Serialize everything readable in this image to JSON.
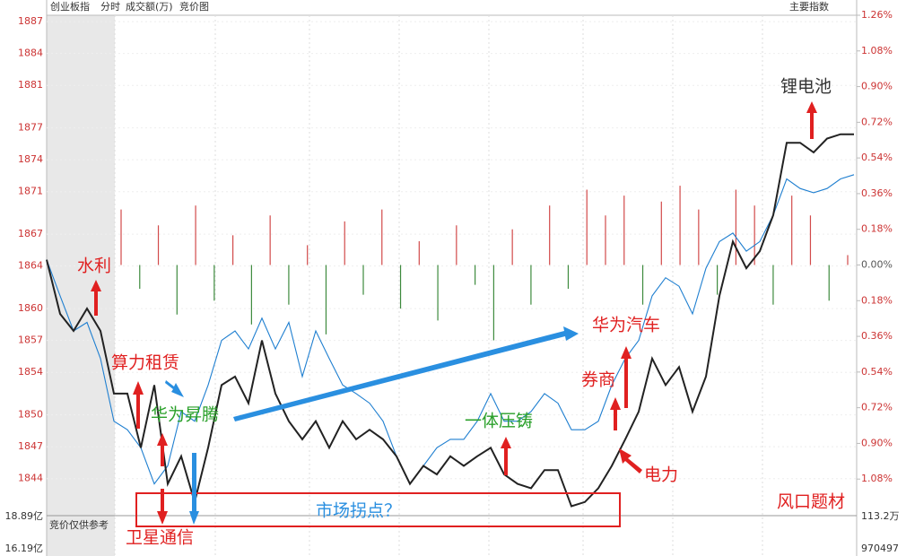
{
  "header": {
    "title": "创业板指",
    "items": [
      "分时",
      "成交额(万)",
      "竞价图"
    ],
    "right": "主要指数"
  },
  "chart_data": {
    "type": "line",
    "ylim": [
      1840.6,
      1887.6
    ],
    "yticks": [
      1887,
      1884,
      1881,
      1877,
      1874,
      1871,
      1867,
      1864,
      1860,
      1857,
      1854,
      1850,
      1847,
      1844
    ],
    "y2lim": [
      -1.26,
      1.26
    ],
    "y2ticks": [
      {
        "value": 1.26,
        "label": "1.26%"
      },
      {
        "value": 1.08,
        "label": "1.08%"
      },
      {
        "value": 0.9,
        "label": "0.90%"
      },
      {
        "value": 0.72,
        "label": "0.72%"
      },
      {
        "value": 0.54,
        "label": "0.54%"
      },
      {
        "value": 0.36,
        "label": "0.36%"
      },
      {
        "value": 0.18,
        "label": "0.18%"
      },
      {
        "value": 0,
        "label": "0.00%"
      },
      {
        "value": -0.18,
        "label": "0.18%"
      },
      {
        "value": -0.36,
        "label": "0.36%"
      },
      {
        "value": -0.54,
        "label": "0.54%"
      },
      {
        "value": -0.72,
        "label": "0.72%"
      },
      {
        "value": -0.9,
        "label": "0.90%"
      },
      {
        "value": -1.08,
        "label": "1.08%"
      }
    ],
    "series": [
      {
        "color": "#222222",
        "values": [
          1864.6,
          1859.5,
          1857.9,
          1860.0,
          1857.9,
          1852.0,
          1852.0,
          1846.9,
          1852.8,
          1843.5,
          1846.1,
          1841.8,
          1846.9,
          1852.8,
          1853.6,
          1851.1,
          1857.0,
          1852.0,
          1849.4,
          1847.7,
          1849.4,
          1846.9,
          1849.4,
          1847.7,
          1848.6,
          1847.7,
          1846.1,
          1843.5,
          1845.2,
          1844.4,
          1846.1,
          1845.2,
          1846.1,
          1846.9,
          1844.4,
          1843.5,
          1843.1,
          1844.8,
          1844.8,
          1841.4,
          1841.8,
          1843.1,
          1845.2,
          1847.7,
          1850.3,
          1855.3,
          1852.8,
          1854.5,
          1850.3,
          1853.6,
          1861.2,
          1866.3,
          1863.8,
          1865.4,
          1868.8,
          1875.6,
          1875.6,
          1874.7,
          1876.0,
          1876.4,
          1876.4
        ]
      },
      {
        "color": "#1f7fd0",
        "values": [
          1864.6,
          1861.2,
          1857.9,
          1858.7,
          1855.3,
          1849.4,
          1848.6,
          1846.9,
          1843.5,
          1845.2,
          1850.3,
          1849.4,
          1852.8,
          1857.0,
          1857.9,
          1856.2,
          1859.1,
          1856.2,
          1858.7,
          1853.6,
          1857.9,
          1855.3,
          1852.8,
          1852.0,
          1851.1,
          1849.4,
          1846.1,
          1843.5,
          1845.2,
          1846.9,
          1847.7,
          1847.7,
          1849.4,
          1852.0,
          1849.4,
          1849.4,
          1850.3,
          1852.0,
          1851.1,
          1848.6,
          1848.6,
          1849.4,
          1852.8,
          1855.3,
          1857.0,
          1861.2,
          1862.9,
          1862.1,
          1859.5,
          1863.8,
          1866.3,
          1867.1,
          1865.4,
          1866.3,
          1868.8,
          1872.2,
          1871.3,
          1870.9,
          1871.3,
          1872.2,
          1872.6
        ]
      }
    ],
    "bars": {
      "axis": "y2",
      "up_color": "#d24a4a",
      "down_color": "#3d8a3d",
      "values": [
        0.28,
        -0.12,
        0.2,
        -0.25,
        0.3,
        -0.18,
        0.15,
        -0.3,
        0.25,
        -0.2,
        0.1,
        -0.35,
        0.22,
        -0.15,
        0.28,
        -0.22,
        0.12,
        -0.28,
        0.2,
        -0.1,
        -0.38,
        0.18,
        -0.2,
        0.3,
        -0.12,
        0.38,
        0.25,
        0.35,
        -0.2,
        0.32,
        0.4,
        0.28,
        -0.15,
        0.38,
        0.3,
        -0.2,
        0.35,
        0.25,
        -0.18,
        0.05
      ]
    },
    "annotations": [
      "水利",
      "算力租赁",
      "华为昇腾",
      "卫星通信",
      "市场拐点？",
      "一体压铸",
      "券商",
      "华为汽车",
      "电力",
      "锂电池",
      "风口题材"
    ]
  },
  "volume_panel": {
    "note": "竞价仅供参考",
    "left_labels": [
      "18.89亿",
      "16.19亿"
    ],
    "right_labels": [
      "113.2万",
      "970497"
    ]
  }
}
